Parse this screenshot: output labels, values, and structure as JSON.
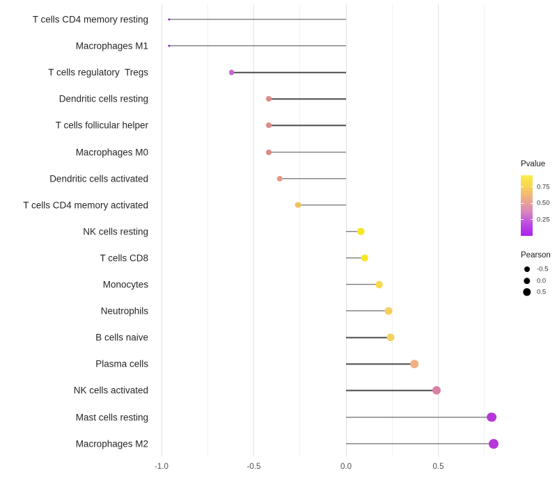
{
  "chart_data": {
    "type": "scatter",
    "variant": "lollipop",
    "title": "",
    "xlabel": "",
    "ylabel": "",
    "xlim": [
      -1.15,
      0.83
    ],
    "grid": "on",
    "x_ticks": [
      {
        "value": -1.0,
        "label": "-1.0"
      },
      {
        "value": -0.5,
        "label": "-0.5"
      },
      {
        "value": 0.0,
        "label": "0.0"
      },
      {
        "value": 0.5,
        "label": "0.5"
      }
    ],
    "x_minor_ticks": [
      -0.75,
      -0.25,
      0.25,
      0.75
    ],
    "points": [
      {
        "name": "T cells CD4 memory resting",
        "pearson": -0.96,
        "pvalue": 0.05,
        "color": "#9b17cb",
        "radius": 1.6
      },
      {
        "name": "Macrophages M1",
        "pearson": -0.96,
        "pvalue": 0.05,
        "color": "#9b17cb",
        "radius": 1.6
      },
      {
        "name": "T cells regulatory  Tregs",
        "pearson": -0.62,
        "pvalue": 0.2,
        "color": "#c966d2",
        "radius": 3.9
      },
      {
        "name": "Dendritic cells resting",
        "pearson": -0.42,
        "pvalue": 0.45,
        "color": "#dd8a88",
        "radius": 4.0
      },
      {
        "name": "T cells follicular helper",
        "pearson": -0.42,
        "pvalue": 0.45,
        "color": "#dd8a88",
        "radius": 4.0
      },
      {
        "name": "Macrophages M0",
        "pearson": -0.42,
        "pvalue": 0.45,
        "color": "#dd8a88",
        "radius": 4.0
      },
      {
        "name": "Dendritic cells activated",
        "pearson": -0.36,
        "pvalue": 0.5,
        "color": "#e59a83",
        "radius": 4.2
      },
      {
        "name": "T cells CD4 memory activated",
        "pearson": -0.26,
        "pvalue": 0.65,
        "color": "#eec25c",
        "radius": 4.4
      },
      {
        "name": "NK cells resting",
        "pearson": 0.08,
        "pvalue": 0.85,
        "color": "#f6e625",
        "radius": 5.3
      },
      {
        "name": "T cells CD8",
        "pearson": 0.1,
        "pvalue": 0.85,
        "color": "#f6e625",
        "radius": 5.3
      },
      {
        "name": "Monocytes",
        "pearson": 0.18,
        "pvalue": 0.75,
        "color": "#f8d94a",
        "radius": 5.4
      },
      {
        "name": "Neutrophils",
        "pearson": 0.23,
        "pvalue": 0.7,
        "color": "#f3d05f",
        "radius": 5.5
      },
      {
        "name": "B cells naive",
        "pearson": 0.24,
        "pvalue": 0.7,
        "color": "#f3d05f",
        "radius": 5.5
      },
      {
        "name": "Plasma cells",
        "pearson": 0.37,
        "pvalue": 0.55,
        "color": "#efb183",
        "radius": 5.8
      },
      {
        "name": "NK cells activated",
        "pearson": 0.49,
        "pvalue": 0.35,
        "color": "#dc7fa5",
        "radius": 6.0
      },
      {
        "name": "Mast cells resting",
        "pearson": 0.79,
        "pvalue": 0.1,
        "color": "#b637d8",
        "radius": 6.9
      },
      {
        "name": "Macrophages M2",
        "pearson": 0.8,
        "pvalue": 0.1,
        "color": "#b637d8",
        "radius": 7.0
      }
    ],
    "legends": {
      "pvalue": {
        "title": "Pvalue",
        "entries": [
          {
            "value": 0.75,
            "label": "0.75"
          },
          {
            "value": 0.5,
            "label": "0.50"
          },
          {
            "value": 0.25,
            "label": "0.25"
          }
        ],
        "bar_range_top": 0.93,
        "bar_range_bottom": 0.0,
        "gradient_top_to_bottom": [
          "#f9ef45",
          "#f8d055",
          "#eda98a",
          "#d887bd",
          "#bb4ce3",
          "#ab20ee"
        ]
      },
      "pearson": {
        "title": "Pearson",
        "entries": [
          {
            "label": "-0.5",
            "radius": 4.0
          },
          {
            "label": "0.0",
            "radius": 4.7
          },
          {
            "label": "0.5",
            "radius": 5.7
          }
        ],
        "dot_color": "#000000"
      }
    },
    "stem_color": "#4a4a4a",
    "baseline_value": 0.0
  }
}
